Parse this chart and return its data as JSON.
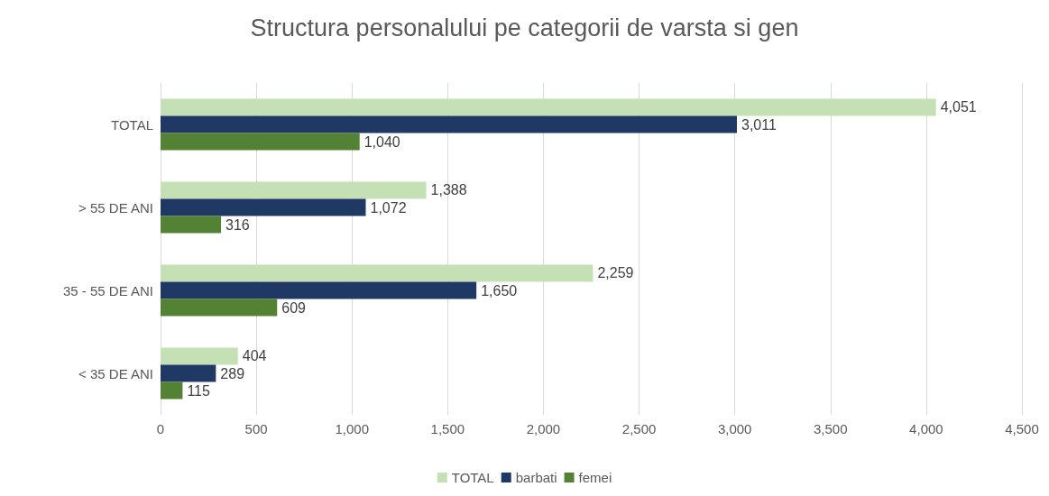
{
  "chart_data": {
    "type": "bar",
    "orientation": "horizontal",
    "title": "Structura personalului pe categorii de varsta si gen",
    "categories": [
      "TOTAL",
      "> 55 DE ANI",
      "35 - 55 DE ANI",
      "< 35 DE ANI"
    ],
    "series": [
      {
        "name": "TOTAL",
        "color": "#c5e0b4",
        "values": [
          4051,
          1388,
          2259,
          404
        ],
        "value_labels": [
          "4,051",
          "1,388",
          "2,259",
          "404"
        ]
      },
      {
        "name": "barbati",
        "color": "#203864",
        "values": [
          3011,
          1072,
          1650,
          289
        ],
        "value_labels": [
          "3,011",
          "1,072",
          "1,650",
          "289"
        ]
      },
      {
        "name": "femei",
        "color": "#548235",
        "values": [
          1040,
          316,
          609,
          115
        ],
        "value_labels": [
          "1,040",
          "316",
          "609",
          "115"
        ]
      }
    ],
    "xlim": [
      0,
      4500
    ],
    "xticks": [
      0,
      500,
      {
        "value": 1000,
        "label": "1,000"
      },
      {
        "value": 1500,
        "label": "1,500"
      },
      {
        "value": 2000,
        "label": "2,000"
      },
      {
        "value": 2500,
        "label": "2,500"
      },
      {
        "value": 3000,
        "label": "3,000"
      },
      {
        "value": 3500,
        "label": "3,500"
      },
      {
        "value": 4000,
        "label": "4,000"
      },
      {
        "value": 4500,
        "label": "4,500"
      }
    ],
    "grid": "x",
    "legend": "bottom"
  }
}
